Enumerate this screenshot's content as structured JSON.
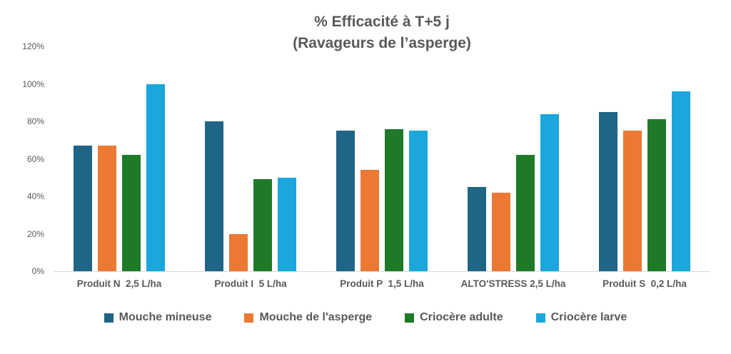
{
  "chart_data": {
    "type": "bar",
    "title_line1": "% Efficacité à T+5 j",
    "title_line2": "(Ravageurs de l’asperge)",
    "categories": [
      "Produit N  2,5 L/ha",
      "Produit I  5 L/ha",
      "Produit P  1,5 L/ha",
      "ALTO'STRESS 2,5 L/ha",
      "Produit S  0,2 L/ha"
    ],
    "series": [
      {
        "name": "Mouche mineuse",
        "color": "#1F6586",
        "values": [
          67,
          80,
          75,
          45,
          85
        ]
      },
      {
        "name": "Mouche de l'asperge",
        "color": "#EC7933",
        "values": [
          67,
          20,
          54,
          42,
          75
        ]
      },
      {
        "name": "Criocère adulte",
        "color": "#1F7A28",
        "values": [
          62,
          49,
          76,
          62,
          81
        ]
      },
      {
        "name": "Criocère larve",
        "color": "#1BA7DC",
        "values": [
          100,
          50,
          75,
          84,
          96
        ]
      }
    ],
    "ylabel": "",
    "xlabel": "",
    "ylim": [
      0,
      120
    ],
    "ytick_step": 20,
    "yticks": [
      "0%",
      "20%",
      "40%",
      "60%",
      "80%",
      "100%",
      "120%"
    ],
    "grid": false,
    "legend_position": "bottom",
    "text_color": "#595959",
    "axis_line_color": "#D9D9D9"
  }
}
